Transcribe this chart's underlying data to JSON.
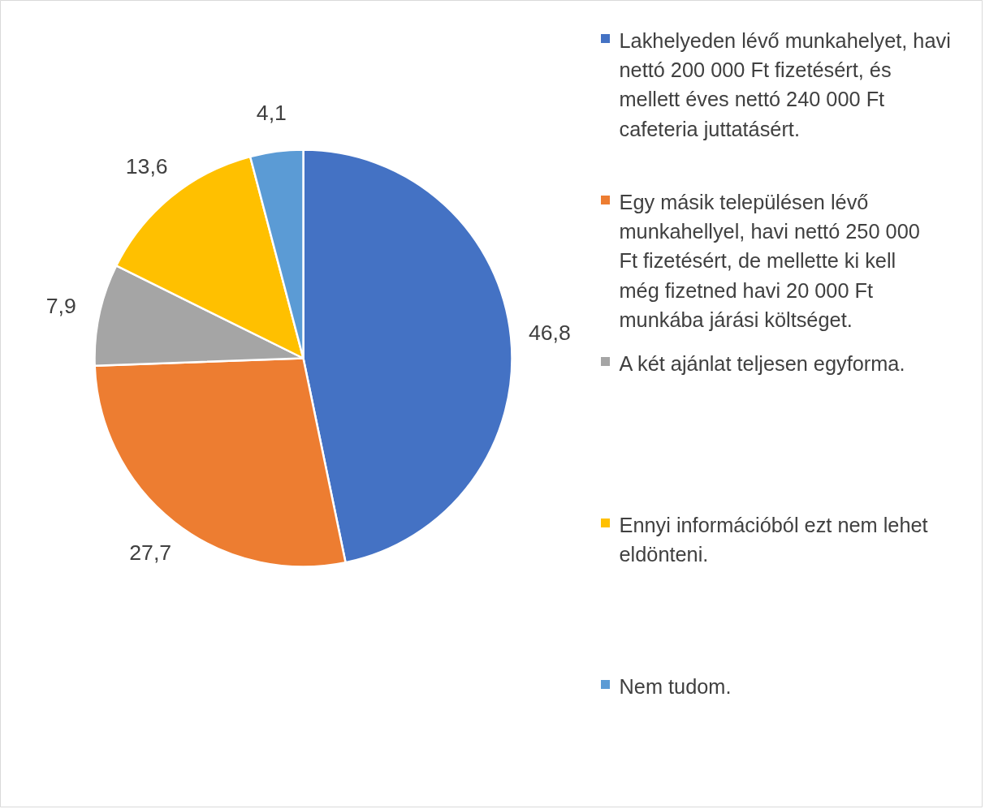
{
  "chart_data": {
    "type": "pie",
    "categories": [
      "Lakhelyeden lévő munkahelyet, havi nettó 200 000 Ft fizetésért, és mellett éves nettó 240 000 Ft cafeteria juttatásért.",
      "Egy másik településen lévő munkahellyel, havi nettó 250 000 Ft fizetésért, de mellette ki kell még fizetned havi 20 000 Ft munkába járási költséget.",
      "A két ajánlat teljesen egyforma.",
      "Ennyi információból ezt nem lehet eldönteni.",
      "Nem tudom."
    ],
    "values": [
      46.8,
      27.7,
      7.9,
      13.6,
      4.1
    ],
    "value_labels": [
      "46,8",
      "27,7",
      "7,9",
      "13,6",
      "4,1"
    ],
    "colors": [
      "#4472c4",
      "#ed7d31",
      "#a5a5a5",
      "#ffc000",
      "#5b9bd5"
    ],
    "legend": "right"
  }
}
